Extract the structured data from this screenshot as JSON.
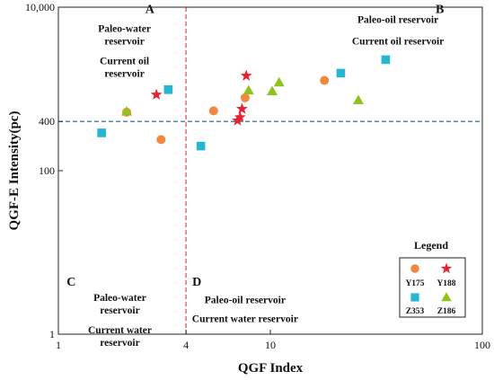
{
  "chart_data": {
    "type": "scatter",
    "xlabel": "QGF Index",
    "ylabel": "QGF-E Intensity(pc)",
    "xscale": "log",
    "yscale": "log",
    "xlim": [
      1,
      100
    ],
    "ylim": [
      1,
      10000
    ],
    "x_ticks": [
      {
        "value": 1,
        "label": "1"
      },
      {
        "value": 4,
        "label": "4"
      },
      {
        "value": 10,
        "label": "10"
      },
      {
        "value": 100,
        "label": "100"
      }
    ],
    "y_ticks": [
      {
        "value": 1,
        "label": "1"
      },
      {
        "value": 100,
        "label": "100"
      },
      {
        "value": 400,
        "label": "400"
      },
      {
        "value": 10000,
        "label": "10,000"
      }
    ],
    "thresholds": {
      "x": 4,
      "y": 400
    },
    "threshold_colors": {
      "vertical": "#e8322f",
      "horizontal": "#1f5f8b"
    },
    "regions": [
      {
        "letter": "A",
        "lines": [
          "Paleo-water",
          "reservoir",
          "Current oil",
          "reservoir"
        ],
        "letter_pos": [
          2.7,
          8500
        ],
        "text_pos": [
          2.05,
          5000
        ],
        "anchor": "middle",
        "line_gap": 14,
        "para_gap": 8
      },
      {
        "letter": "B",
        "lines": [
          "Paleo-oil reservoir",
          "Current oil reservoir"
        ],
        "letter_pos": [
          63,
          8500
        ],
        "text_pos": [
          40,
          6400
        ],
        "anchor": "middle",
        "line_gap": 24,
        "para_gap": 0
      },
      {
        "letter": "C",
        "lines": [
          "Paleo-water",
          "reservoir",
          "Current water",
          "reservoir"
        ],
        "letter_pos": [
          1.15,
          3.9
        ],
        "text_pos": [
          1.95,
          2.55
        ],
        "anchor": "middle",
        "line_gap": 14,
        "para_gap": 8
      },
      {
        "letter": "D",
        "lines": [
          "Paleo-oil reservoir",
          "Current water reservoir"
        ],
        "letter_pos": [
          4.5,
          3.9
        ],
        "text_pos": [
          7.6,
          2.4
        ],
        "anchor": "middle",
        "line_gap": 21,
        "para_gap": 0
      }
    ],
    "series": [
      {
        "name": "Y175",
        "marker": "circle",
        "color": "#f0883e",
        "points": [
          [
            2.1,
            520
          ],
          [
            3.05,
            240
          ],
          [
            5.4,
            540
          ],
          [
            7.6,
            780
          ],
          [
            18,
            1270
          ]
        ]
      },
      {
        "name": "Y188",
        "marker": "star",
        "color": "#e8232f",
        "points": [
          [
            2.9,
            850
          ],
          [
            7.0,
            410
          ],
          [
            7.2,
            450
          ],
          [
            7.35,
            570
          ],
          [
            7.7,
            1450
          ]
        ]
      },
      {
        "name": "Z353",
        "marker": "square",
        "color": "#25b6d2",
        "points": [
          [
            1.6,
            290
          ],
          [
            3.3,
            980
          ],
          [
            4.7,
            200
          ],
          [
            21.5,
            1560
          ],
          [
            35,
            2280
          ]
        ]
      },
      {
        "name": "Z186",
        "marker": "triangle",
        "color": "#8fc21b",
        "points": [
          [
            2.1,
            530
          ],
          [
            7.9,
            960
          ],
          [
            10.2,
            940
          ],
          [
            11,
            1200
          ],
          [
            26,
            730
          ]
        ]
      }
    ],
    "legend": {
      "title": "Legend",
      "position": "lower-right"
    }
  }
}
